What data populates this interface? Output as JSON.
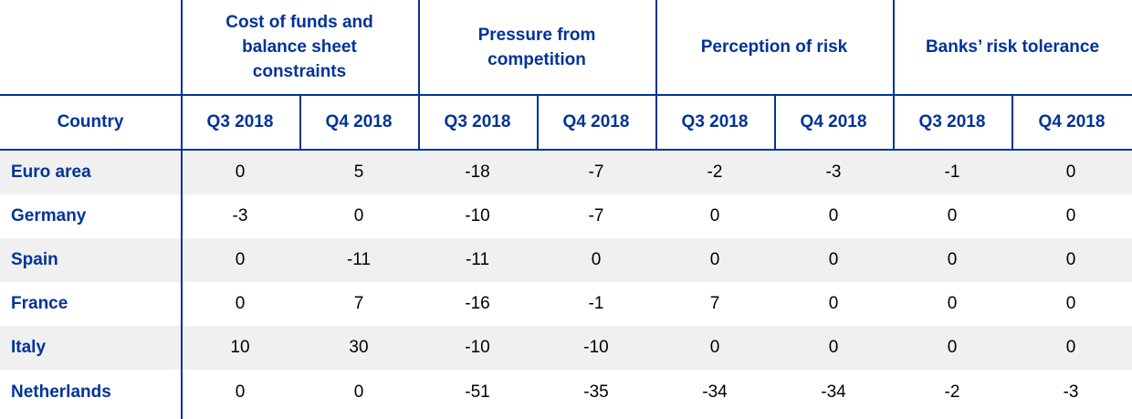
{
  "groups": [
    "Cost of funds and\nbalance sheet\nconstraints",
    "Pressure from\ncompetition",
    "Perception of risk",
    "Banks’ risk tolerance"
  ],
  "header": {
    "country": "Country",
    "periods": [
      "Q3 2018",
      "Q4 2018",
      "Q3 2018",
      "Q4 2018",
      "Q3 2018",
      "Q4 2018",
      "Q3 2018",
      "Q4 2018"
    ]
  },
  "rows": [
    {
      "country": "Euro area",
      "values": [
        "0",
        "5",
        "-18",
        "-7",
        "-2",
        "-3",
        "-1",
        "0"
      ]
    },
    {
      "country": "Germany",
      "values": [
        "-3",
        "0",
        "-10",
        "-7",
        "0",
        "0",
        "0",
        "0"
      ]
    },
    {
      "country": "Spain",
      "values": [
        "0",
        "-11",
        "-11",
        "0",
        "0",
        "0",
        "0",
        "0"
      ]
    },
    {
      "country": "France",
      "values": [
        "0",
        "7",
        "-16",
        "-1",
        "7",
        "0",
        "0",
        "0"
      ]
    },
    {
      "country": "Italy",
      "values": [
        "10",
        "30",
        "-10",
        "-10",
        "0",
        "0",
        "0",
        "0"
      ]
    },
    {
      "country": "Netherlands",
      "values": [
        "0",
        "0",
        "-51",
        "-35",
        "-34",
        "-34",
        "-2",
        "-3"
      ]
    }
  ],
  "colors": {
    "header_text": "#003399",
    "rule": "#003399",
    "shade": "#f0f0f0"
  }
}
